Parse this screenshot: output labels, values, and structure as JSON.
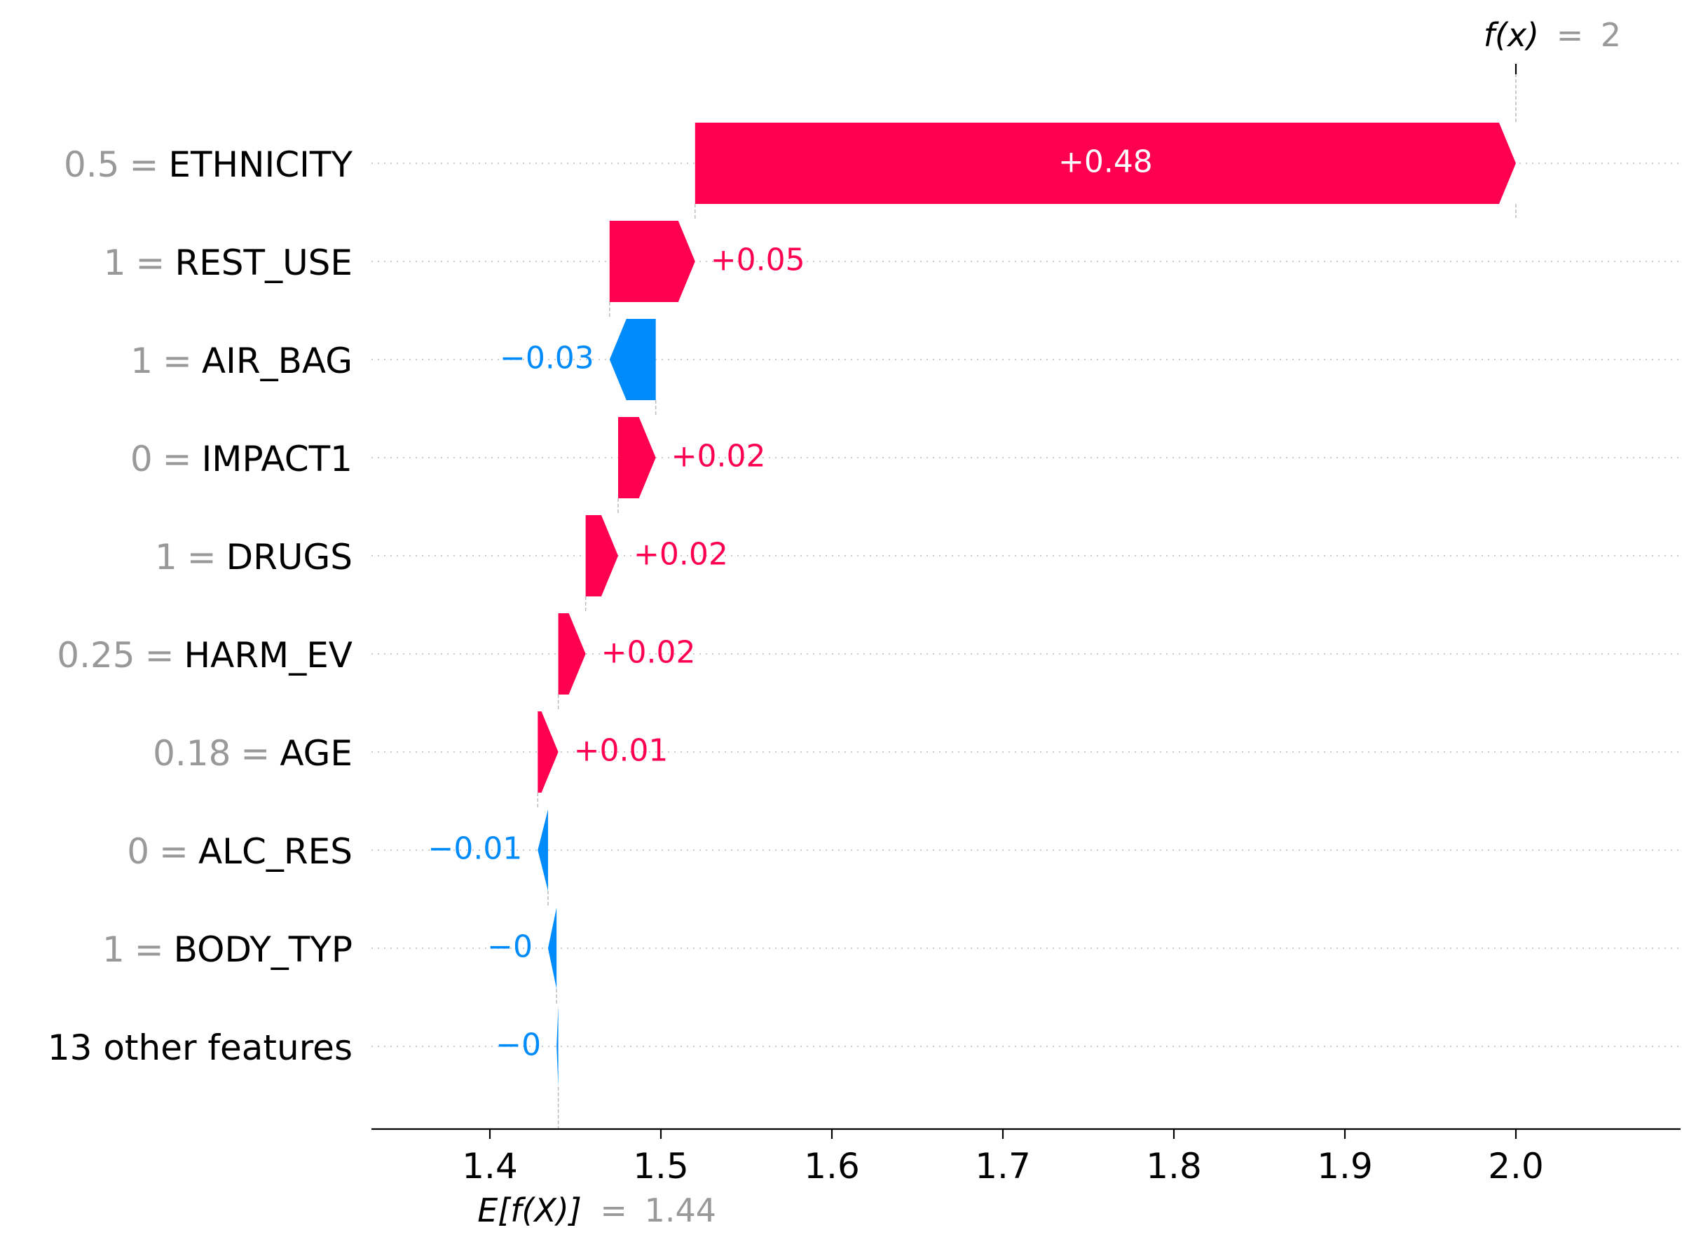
{
  "chart_data": {
    "type": "waterfall",
    "title": "",
    "base_value": 1.44,
    "output_value": 2,
    "base_label": {
      "name": "E[f(X)]",
      "eq": "=",
      "value": "1.44"
    },
    "output_label": {
      "name": "f(x)",
      "eq": "=",
      "value": "2"
    },
    "xlim": [
      1.332,
      2.098
    ],
    "x_ticks": [
      "1.4",
      "1.5",
      "1.6",
      "1.7",
      "1.8",
      "1.9",
      "2.0"
    ],
    "x_tick_values": [
      1.4,
      1.5,
      1.6,
      1.7,
      1.8,
      1.9,
      2.0
    ],
    "colors": {
      "positive": "#ff0051",
      "negative": "#008bfb",
      "gray": "#999999",
      "text": "#000000"
    },
    "rows": [
      {
        "value_text": "0.5",
        "eq": "=",
        "feature": "ETHNICITY",
        "contribution": 0.48,
        "start": 1.52,
        "end": 2.0,
        "label": "+0.48"
      },
      {
        "value_text": "1",
        "eq": "=",
        "feature": "REST_USE",
        "contribution": 0.05,
        "start": 1.47,
        "end": 1.52,
        "label": "+0.05"
      },
      {
        "value_text": "1",
        "eq": "=",
        "feature": "AIR_BAG",
        "contribution": -0.03,
        "start": 1.497,
        "end": 1.47,
        "label": "−0.03"
      },
      {
        "value_text": "0",
        "eq": "=",
        "feature": "IMPACT1",
        "contribution": 0.02,
        "start": 1.475,
        "end": 1.497,
        "label": "+0.02"
      },
      {
        "value_text": "1",
        "eq": "=",
        "feature": "DRUGS",
        "contribution": 0.02,
        "start": 1.456,
        "end": 1.475,
        "label": "+0.02"
      },
      {
        "value_text": "0.25",
        "eq": "=",
        "feature": "HARM_EV",
        "contribution": 0.02,
        "start": 1.44,
        "end": 1.456,
        "label": "+0.02"
      },
      {
        "value_text": "0.18",
        "eq": "=",
        "feature": "AGE",
        "contribution": 0.01,
        "start": 1.428,
        "end": 1.44,
        "label": "+0.01"
      },
      {
        "value_text": "0",
        "eq": "=",
        "feature": "ALC_RES",
        "contribution": -0.01,
        "start": 1.434,
        "end": 1.428,
        "label": "−0.01"
      },
      {
        "value_text": "1",
        "eq": "=",
        "feature": "BODY_TYP",
        "contribution": -0.005,
        "start": 1.439,
        "end": 1.434,
        "label": "−0"
      },
      {
        "value_text": "",
        "eq": "",
        "feature": "13 other features",
        "contribution": -0.001,
        "start": 1.44,
        "end": 1.439,
        "label": "−0"
      }
    ]
  }
}
